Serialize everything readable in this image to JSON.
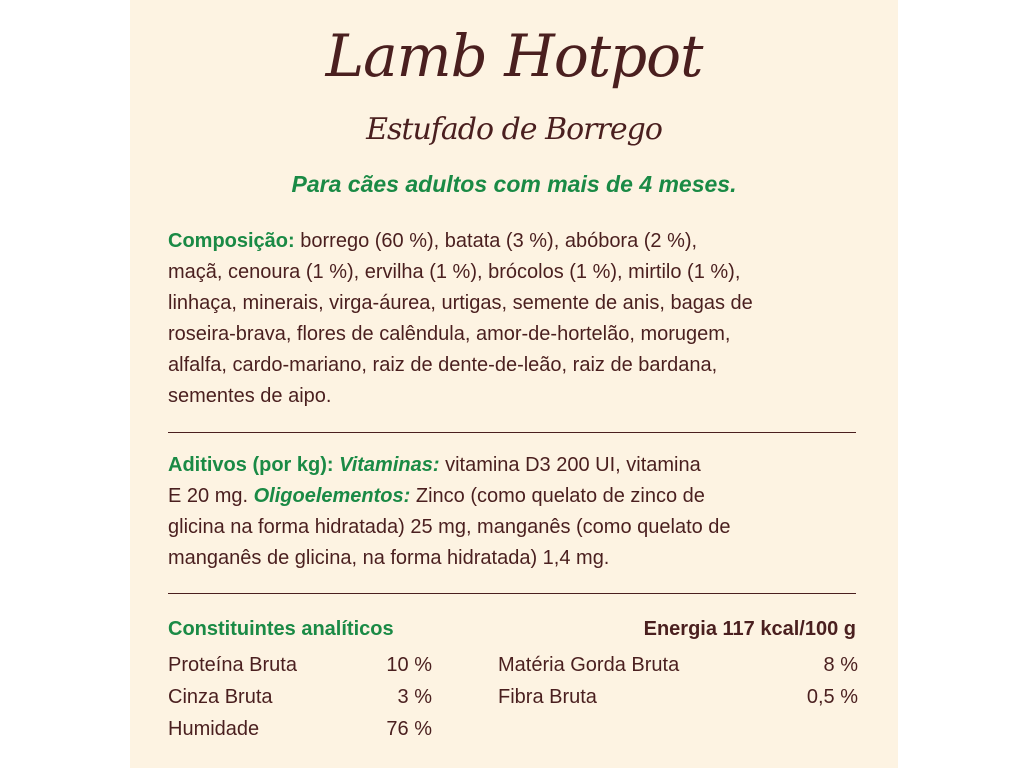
{
  "title": "Lamb Hotpot",
  "subtitle": "Estufado de Borrego",
  "target": "Para cães adultos com mais de 4 meses.",
  "composition": {
    "label": "Composição:",
    "lines": [
      "borrego (60 %), batata (3 %), abóbora (2 %),",
      "maçã, cenoura (1 %), ervilha (1 %), brócolos (1 %), mirtilo (1 %),",
      "linhaça, minerais, virga-áurea, urtigas, semente de anis, bagas de",
      "roseira-brava, flores de calêndula, amor-de-hortelão, morugem,",
      "alfalfa, cardo-mariano, raiz de dente-de-leão, raiz de bardana,",
      "sementes de aipo."
    ]
  },
  "additives": {
    "label": "Aditivos (por kg):",
    "vitamins_label": "Vitaminas:",
    "line1_rest": "vitamina D3 200 UI, vitamina",
    "line2_start": "E 20 mg.",
    "trace_label": "Oligoelementos:",
    "line2_rest": "Zinco (como quelato de zinco de",
    "line3": "glicina na forma hidratada) 25 mg, manganês (como quelato de",
    "line4": "manganês de glicina, na forma hidratada) 1,4 mg."
  },
  "analytical": {
    "label": "Constituintes analíticos",
    "energy": "Energia 117 kcal/100 g",
    "left": [
      {
        "name": "Proteína Bruta",
        "value": "10 %"
      },
      {
        "name": "Cinza Bruta",
        "value": "3 %"
      },
      {
        "name": "Humidade",
        "value": "76 %"
      }
    ],
    "right": [
      {
        "name": "Matéria Gorda Bruta",
        "value": "8 %"
      },
      {
        "name": "Fibra Bruta",
        "value": "0,5 %"
      }
    ]
  },
  "colors": {
    "background": "#fdf3e2",
    "text": "#4a1f1f",
    "accent": "#1a8a45"
  }
}
